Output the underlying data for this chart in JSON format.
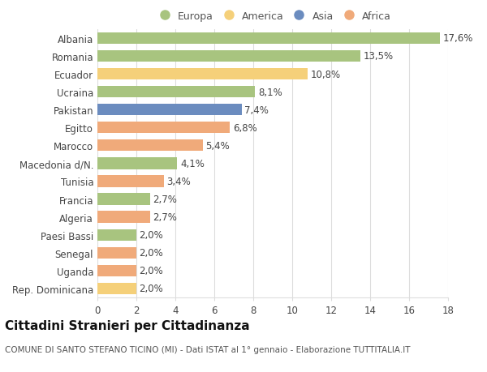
{
  "categories": [
    "Albania",
    "Romania",
    "Ecuador",
    "Ucraina",
    "Pakistan",
    "Egitto",
    "Marocco",
    "Macedonia d/N.",
    "Tunisia",
    "Francia",
    "Algeria",
    "Paesi Bassi",
    "Senegal",
    "Uganda",
    "Rep. Dominicana"
  ],
  "values": [
    17.6,
    13.5,
    10.8,
    8.1,
    7.4,
    6.8,
    5.4,
    4.1,
    3.4,
    2.7,
    2.7,
    2.0,
    2.0,
    2.0,
    2.0
  ],
  "labels": [
    "17,6%",
    "13,5%",
    "10,8%",
    "8,1%",
    "7,4%",
    "6,8%",
    "5,4%",
    "4,1%",
    "3,4%",
    "2,7%",
    "2,7%",
    "2,0%",
    "2,0%",
    "2,0%",
    "2,0%"
  ],
  "continents": [
    "Europa",
    "Europa",
    "America",
    "Europa",
    "Asia",
    "Africa",
    "Africa",
    "Europa",
    "Africa",
    "Europa",
    "Africa",
    "Europa",
    "Africa",
    "Africa",
    "America"
  ],
  "colors": {
    "Europa": "#a8c47f",
    "America": "#f5d07a",
    "Asia": "#6b8cbf",
    "Africa": "#f0aa7a"
  },
  "legend_order": [
    "Europa",
    "America",
    "Asia",
    "Africa"
  ],
  "legend_colors": [
    "#a8c47f",
    "#f5d07a",
    "#6b8cbf",
    "#f0aa7a"
  ],
  "xlim": [
    0,
    18
  ],
  "xticks": [
    0,
    2,
    4,
    6,
    8,
    10,
    12,
    14,
    16,
    18
  ],
  "title": "Cittadini Stranieri per Cittadinanza",
  "subtitle": "COMUNE DI SANTO STEFANO TICINO (MI) - Dati ISTAT al 1° gennaio - Elaborazione TUTTITALIA.IT",
  "background_color": "#ffffff",
  "grid_color": "#dddddd",
  "bar_height": 0.65,
  "label_fontsize": 8.5,
  "tick_fontsize": 8.5,
  "title_fontsize": 11,
  "subtitle_fontsize": 7.5
}
